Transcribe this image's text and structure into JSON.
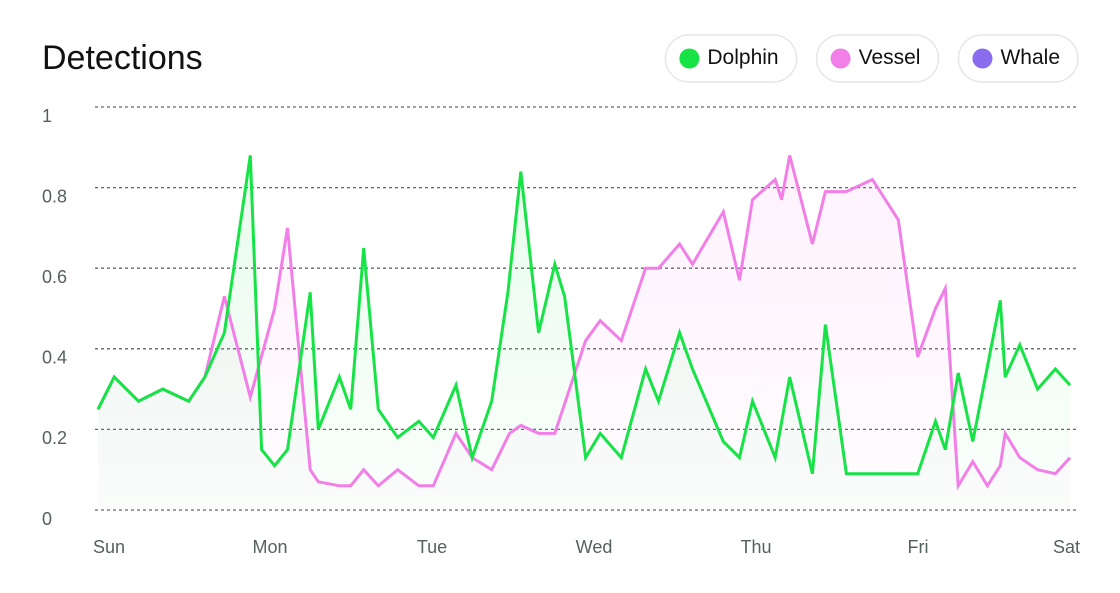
{
  "chart_data": {
    "type": "line",
    "title": "Detections",
    "xlim": [
      0,
      6
    ],
    "xticks": [
      {
        "value": 0,
        "label": "Sun"
      },
      {
        "value": 1,
        "label": "Mon"
      },
      {
        "value": 2,
        "label": "Tue"
      },
      {
        "value": 3,
        "label": "Wed"
      },
      {
        "value": 4,
        "label": "Thu"
      },
      {
        "value": 5,
        "label": "Fri"
      },
      {
        "value": 6,
        "label": "Sat"
      }
    ],
    "ylim": [
      0,
      1
    ],
    "yticks": [
      0,
      0.2,
      0.4,
      0.6,
      0.8,
      1
    ],
    "grid": true,
    "legend": "top-right",
    "series": [
      {
        "name": "Dolphin",
        "color": "#17e347",
        "x": [
          0,
          0.1,
          0.25,
          0.4,
          0.56,
          0.66,
          0.78,
          0.94,
          1.01,
          1.09,
          1.17,
          1.31,
          1.36,
          1.49,
          1.56,
          1.64,
          1.73,
          1.85,
          1.98,
          2.07,
          2.21,
          2.31,
          2.43,
          2.53,
          2.61,
          2.72,
          2.82,
          2.88,
          3.01,
          3.1,
          3.23,
          3.38,
          3.46,
          3.59,
          3.67,
          3.86,
          3.96,
          4.04,
          4.18,
          4.27,
          4.41,
          4.49,
          4.62,
          4.78,
          4.94,
          5.06,
          5.17,
          5.23,
          5.31,
          5.4,
          5.57,
          5.6,
          5.69,
          5.8,
          5.91,
          6.0
        ],
        "values": [
          0.25,
          0.33,
          0.27,
          0.3,
          0.27,
          0.33,
          0.44,
          0.88,
          0.15,
          0.11,
          0.15,
          0.54,
          0.2,
          0.33,
          0.25,
          0.65,
          0.25,
          0.18,
          0.22,
          0.18,
          0.31,
          0.13,
          0.27,
          0.54,
          0.84,
          0.44,
          0.61,
          0.53,
          0.13,
          0.19,
          0.13,
          0.35,
          0.27,
          0.44,
          0.35,
          0.17,
          0.13,
          0.27,
          0.13,
          0.33,
          0.09,
          0.46,
          0.09,
          0.09,
          0.09,
          0.09,
          0.22,
          0.15,
          0.34,
          0.17,
          0.52,
          0.33,
          0.41,
          0.3,
          0.35,
          0.31
        ]
      },
      {
        "name": "Vessel",
        "color": "#f27fe8",
        "x": [
          0,
          0.1,
          0.25,
          0.4,
          0.56,
          0.66,
          0.78,
          0.94,
          1.09,
          1.17,
          1.31,
          1.36,
          1.49,
          1.56,
          1.64,
          1.73,
          1.85,
          1.98,
          2.07,
          2.21,
          2.31,
          2.43,
          2.54,
          2.61,
          2.72,
          2.82,
          3.01,
          3.1,
          3.23,
          3.38,
          3.46,
          3.59,
          3.67,
          3.86,
          3.96,
          4.04,
          4.18,
          4.22,
          4.27,
          4.41,
          4.49,
          4.62,
          4.78,
          4.94,
          5.06,
          5.17,
          5.23,
          5.31,
          5.4,
          5.49,
          5.57,
          5.6,
          5.69,
          5.8,
          5.91,
          6.0
        ],
        "values": [
          0.25,
          0.33,
          0.27,
          0.3,
          0.27,
          0.33,
          0.53,
          0.28,
          0.5,
          0.7,
          0.1,
          0.07,
          0.06,
          0.06,
          0.1,
          0.06,
          0.1,
          0.06,
          0.06,
          0.19,
          0.13,
          0.1,
          0.19,
          0.21,
          0.19,
          0.19,
          0.42,
          0.47,
          0.42,
          0.6,
          0.6,
          0.66,
          0.61,
          0.74,
          0.57,
          0.77,
          0.82,
          0.77,
          0.88,
          0.66,
          0.79,
          0.79,
          0.82,
          0.72,
          0.38,
          0.5,
          0.55,
          0.06,
          0.12,
          0.06,
          0.11,
          0.19,
          0.13,
          0.1,
          0.09,
          0.13
        ]
      },
      {
        "name": "Whale",
        "color": "#8a6cef",
        "x": [],
        "values": []
      }
    ]
  }
}
